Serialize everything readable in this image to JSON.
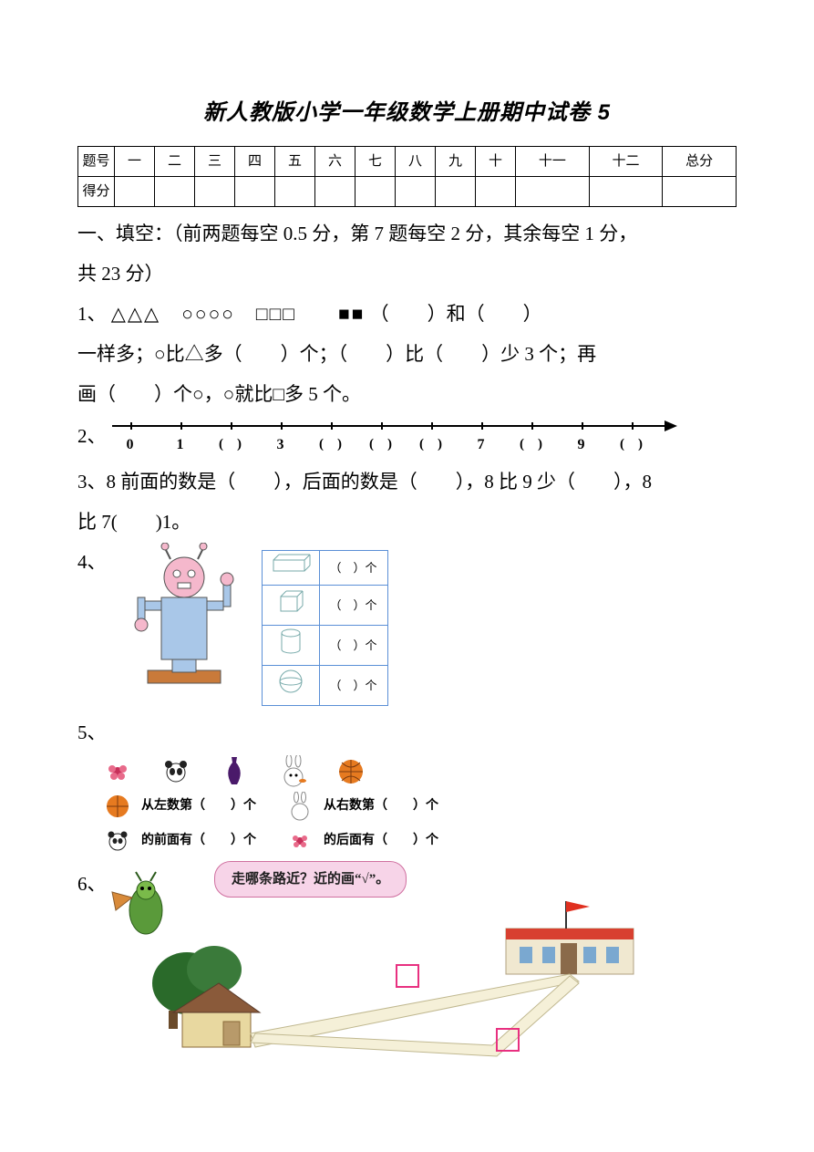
{
  "title": "新人教版小学一年级数学上册期中试卷 5",
  "scoreTable": {
    "headerRow": [
      "题号",
      "一",
      "二",
      "三",
      "四",
      "五",
      "六",
      "七",
      "八",
      "九",
      "十",
      "十一",
      "十二",
      "总分"
    ],
    "scoreRowLabel": "得分"
  },
  "section1": {
    "heading_a": "一、填空：（前两题每空 0.5 分，第 7 题每空 2 分，其余每空 1 分，",
    "heading_b": "共 23 分）",
    "q1": {
      "prefix": "1、",
      "shapes_text": "△△△　○○○○　□□□　　■■",
      "after_shapes": "（　　）和（　　）",
      "line2": "一样多；○比△多（　　）个；（　　）比（　　）少 3 个；再",
      "line3": "画（　　）个○，○就比□多 5 个。"
    },
    "q2": {
      "prefix": "2、",
      "ticks": [
        {
          "pos": 20,
          "label": "0"
        },
        {
          "pos": 75,
          "label": "1"
        },
        {
          "pos": 130,
          "blank": "(　)"
        },
        {
          "pos": 185,
          "label": "3"
        },
        {
          "pos": 240,
          "blank": "(　)"
        },
        {
          "pos": 295,
          "blank": "(　)"
        },
        {
          "pos": 350,
          "blank": "(　)"
        },
        {
          "pos": 405,
          "label": "7"
        },
        {
          "pos": 460,
          "blank": "(　)"
        },
        {
          "pos": 515,
          "label": "9"
        },
        {
          "pos": 570,
          "blank": "(　)"
        }
      ]
    },
    "q3": {
      "line1": "3、8 前面的数是（　　），后面的数是（　　），8 比 9 少（　　），8",
      "line2": "比 7(　　)1。"
    },
    "q4": {
      "prefix": "4、",
      "rows": [
        {
          "shape": "cuboid",
          "label": "（　）个"
        },
        {
          "shape": "cube",
          "label": "（　）个"
        },
        {
          "shape": "cylinder",
          "label": "（　）个"
        },
        {
          "shape": "sphere",
          "label": "（　）个"
        }
      ],
      "robot_colors": {
        "body": "#a9c7e8",
        "head": "#f5b8cc",
        "base": "#c97a3a",
        "outline": "#555"
      }
    },
    "q5": {
      "prefix": "5、",
      "icons": [
        "flower",
        "panda",
        "vase",
        "rabbit",
        "basketball"
      ],
      "rows": [
        {
          "icon": "basketball",
          "text": "从左数第（　　）个",
          "icon2": "rabbit",
          "text2": "从右数第（　　）个"
        },
        {
          "icon": "panda",
          "text": "的前面有（　　）个",
          "icon2": "flower",
          "text2": "的后面有（　　）个"
        }
      ],
      "colors": {
        "basketball": "#e67a20",
        "panda_black": "#222",
        "vase": "#4a1a6a",
        "rabbit": "#fff",
        "flower": "#c7305a"
      }
    },
    "q6": {
      "prefix": "6、",
      "speech": "走哪条路近？近的画“√”。",
      "colors": {
        "grass": "#3a7a2a",
        "house": "#e8d8a0",
        "roof": "#8a5a3a",
        "school": "#d84030",
        "flag": "#e03020",
        "road": "#f5f0d8",
        "box": "#e83080",
        "tree": "#2a6a2a",
        "bug": "#5a9a3a"
      }
    }
  }
}
